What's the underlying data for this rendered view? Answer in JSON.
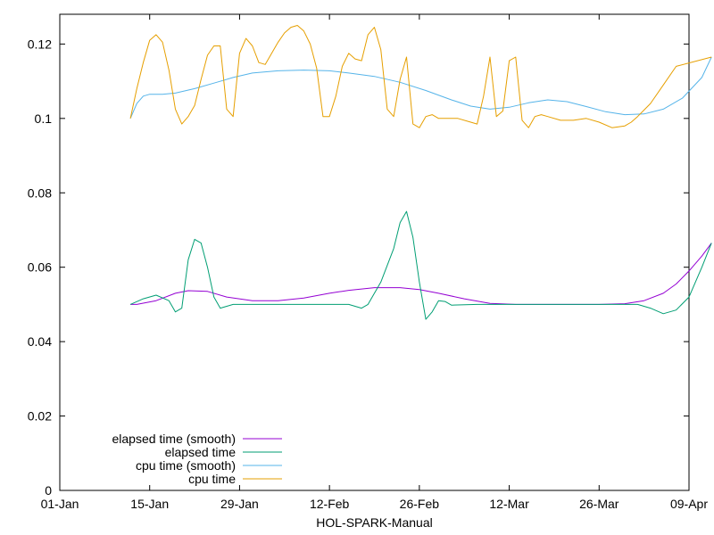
{
  "chart_data": {
    "type": "line",
    "xlabel": "HOL-SPARK-Manual",
    "ylabel": "",
    "title": "",
    "x_ticks": [
      "01-Jan",
      "15-Jan",
      "29-Jan",
      "12-Feb",
      "26-Feb",
      "12-Mar",
      "26-Mar",
      "09-Apr"
    ],
    "y_ticks": [
      "0",
      "0.02",
      "0.04",
      "0.06",
      "0.08",
      "0.1",
      "0.12"
    ],
    "xlim_days": [
      0,
      98
    ],
    "ylim": [
      0,
      0.128
    ],
    "grid": false,
    "legend_position": "bottom-left",
    "series": [
      {
        "name": "elapsed time (smooth)",
        "color": "#9400d3",
        "points": [
          [
            11,
            0.05
          ],
          [
            12,
            0.05
          ],
          [
            15,
            0.051
          ],
          [
            18,
            0.053
          ],
          [
            20,
            0.0537
          ],
          [
            23,
            0.0535
          ],
          [
            26,
            0.052
          ],
          [
            30,
            0.051
          ],
          [
            34,
            0.051
          ],
          [
            38,
            0.0517
          ],
          [
            42,
            0.053
          ],
          [
            45,
            0.0538
          ],
          [
            49,
            0.0545
          ],
          [
            53,
            0.0545
          ],
          [
            56,
            0.054
          ],
          [
            59,
            0.053
          ],
          [
            63,
            0.0515
          ],
          [
            67,
            0.0503
          ],
          [
            71,
            0.05
          ],
          [
            75,
            0.05
          ],
          [
            80,
            0.05
          ],
          [
            84,
            0.05
          ],
          [
            88,
            0.0502
          ],
          [
            91,
            0.051
          ],
          [
            94,
            0.053
          ],
          [
            96,
            0.0555
          ],
          [
            98,
            0.059
          ],
          [
            100,
            0.063
          ],
          [
            101.5,
            0.0665
          ]
        ]
      },
      {
        "name": "elapsed time",
        "color": "#009e73",
        "points": [
          [
            11,
            0.05
          ],
          [
            13,
            0.0515
          ],
          [
            15,
            0.0525
          ],
          [
            17,
            0.051
          ],
          [
            18,
            0.048
          ],
          [
            19,
            0.049
          ],
          [
            20,
            0.062
          ],
          [
            21,
            0.0675
          ],
          [
            22,
            0.0665
          ],
          [
            23,
            0.06
          ],
          [
            24,
            0.052
          ],
          [
            25,
            0.049
          ],
          [
            26,
            0.0495
          ],
          [
            27,
            0.05
          ],
          [
            35,
            0.05
          ],
          [
            40,
            0.05
          ],
          [
            43,
            0.05
          ],
          [
            45,
            0.05
          ],
          [
            47,
            0.049
          ],
          [
            48,
            0.05
          ],
          [
            50,
            0.056
          ],
          [
            52,
            0.065
          ],
          [
            53,
            0.072
          ],
          [
            54,
            0.075
          ],
          [
            55,
            0.068
          ],
          [
            56,
            0.056
          ],
          [
            57,
            0.046
          ],
          [
            58,
            0.048
          ],
          [
            59,
            0.051
          ],
          [
            60,
            0.0508
          ],
          [
            61,
            0.0498
          ],
          [
            65,
            0.05
          ],
          [
            72,
            0.05
          ],
          [
            80,
            0.05
          ],
          [
            86,
            0.05
          ],
          [
            90,
            0.05
          ],
          [
            92,
            0.049
          ],
          [
            94,
            0.0475
          ],
          [
            96,
            0.0485
          ],
          [
            98,
            0.052
          ],
          [
            100,
            0.06
          ],
          [
            101.5,
            0.0665
          ]
        ]
      },
      {
        "name": "cpu time (smooth)",
        "color": "#56b4e9",
        "points": [
          [
            11,
            0.1
          ],
          [
            12,
            0.104
          ],
          [
            13,
            0.106
          ],
          [
            14,
            0.1065
          ],
          [
            16,
            0.1065
          ],
          [
            18,
            0.1068
          ],
          [
            21,
            0.108
          ],
          [
            24,
            0.1095
          ],
          [
            27,
            0.111
          ],
          [
            30,
            0.1122
          ],
          [
            34,
            0.1128
          ],
          [
            38,
            0.113
          ],
          [
            42,
            0.1128
          ],
          [
            45,
            0.1122
          ],
          [
            49,
            0.1113
          ],
          [
            53,
            0.1097
          ],
          [
            57,
            0.1075
          ],
          [
            61,
            0.105
          ],
          [
            64,
            0.1033
          ],
          [
            67,
            0.1025
          ],
          [
            70,
            0.103
          ],
          [
            73,
            0.1042
          ],
          [
            76,
            0.105
          ],
          [
            79,
            0.1045
          ],
          [
            82,
            0.1032
          ],
          [
            85,
            0.1018
          ],
          [
            88,
            0.101
          ],
          [
            91,
            0.1012
          ],
          [
            94,
            0.1025
          ],
          [
            97,
            0.1055
          ],
          [
            100,
            0.111
          ],
          [
            101.5,
            0.1165
          ]
        ]
      },
      {
        "name": "cpu time",
        "color": "#e69f00",
        "points": [
          [
            11,
            0.1
          ],
          [
            12,
            0.108
          ],
          [
            13,
            0.115
          ],
          [
            14,
            0.121
          ],
          [
            15,
            0.1225
          ],
          [
            16,
            0.1205
          ],
          [
            17,
            0.113
          ],
          [
            18,
            0.1025
          ],
          [
            19,
            0.0985
          ],
          [
            20,
            0.1005
          ],
          [
            21,
            0.1035
          ],
          [
            22,
            0.1105
          ],
          [
            23,
            0.117
          ],
          [
            24,
            0.1195
          ],
          [
            25,
            0.1195
          ],
          [
            26,
            0.1025
          ],
          [
            27,
            0.1005
          ],
          [
            28,
            0.1175
          ],
          [
            29,
            0.1215
          ],
          [
            30,
            0.1195
          ],
          [
            31,
            0.115
          ],
          [
            32,
            0.1145
          ],
          [
            33,
            0.1175
          ],
          [
            34,
            0.1205
          ],
          [
            35,
            0.123
          ],
          [
            36,
            0.1245
          ],
          [
            37,
            0.125
          ],
          [
            38,
            0.1235
          ],
          [
            39,
            0.12
          ],
          [
            40,
            0.1135
          ],
          [
            41,
            0.1005
          ],
          [
            42,
            0.1005
          ],
          [
            43,
            0.106
          ],
          [
            44,
            0.114
          ],
          [
            45,
            0.1175
          ],
          [
            46,
            0.116
          ],
          [
            47,
            0.1155
          ],
          [
            48,
            0.1225
          ],
          [
            49,
            0.1245
          ],
          [
            50,
            0.1185
          ],
          [
            51,
            0.1025
          ],
          [
            52,
            0.1005
          ],
          [
            53,
            0.1105
          ],
          [
            54,
            0.1165
          ],
          [
            55,
            0.0985
          ],
          [
            56,
            0.0975
          ],
          [
            57,
            0.1005
          ],
          [
            58,
            0.101
          ],
          [
            59,
            0.1
          ],
          [
            60,
            0.1
          ],
          [
            62,
            0.1
          ],
          [
            64,
            0.099
          ],
          [
            65,
            0.0985
          ],
          [
            66,
            0.106
          ],
          [
            67,
            0.1165
          ],
          [
            68,
            0.1005
          ],
          [
            69,
            0.102
          ],
          [
            70,
            0.1155
          ],
          [
            71,
            0.1165
          ],
          [
            72,
            0.0995
          ],
          [
            73,
            0.0975
          ],
          [
            74,
            0.1005
          ],
          [
            75,
            0.101
          ],
          [
            76,
            0.1005
          ],
          [
            78,
            0.0995
          ],
          [
            80,
            0.0995
          ],
          [
            82,
            0.1
          ],
          [
            84,
            0.099
          ],
          [
            86,
            0.0975
          ],
          [
            88,
            0.098
          ],
          [
            89,
            0.099
          ],
          [
            90,
            0.1005
          ],
          [
            92,
            0.104
          ],
          [
            94,
            0.109
          ],
          [
            96,
            0.114
          ],
          [
            101.5,
            0.1165
          ]
        ]
      }
    ]
  }
}
